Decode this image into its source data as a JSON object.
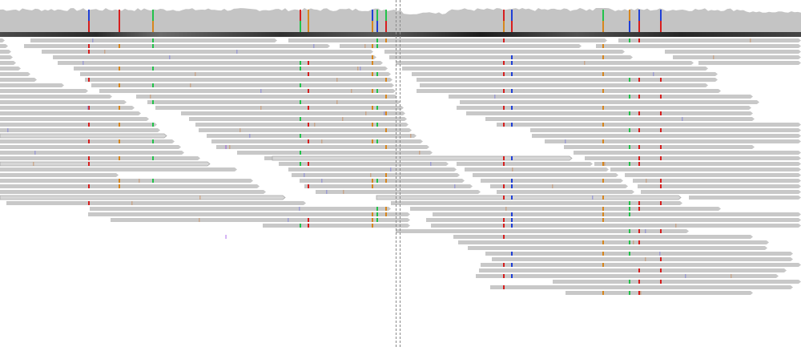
{
  "colors": {
    "read_fill": "#c8c8c8",
    "read_fill_soft": "#d6d6d6",
    "read_outline": "#a9a9a9",
    "coverage": "#c4c4c4",
    "ref_strip_dark": "#222222",
    "base_A": "#22c24a",
    "base_C": "#1f3fd6",
    "base_G": "#d6861e",
    "base_T": "#d61e1e",
    "insertion": "#8a2be2",
    "guide": "#8a8a8a"
  },
  "coverage_track": {
    "variant_sites": [
      {
        "pos": 111,
        "bases": [
          "C",
          "T"
        ]
      },
      {
        "pos": 149,
        "bases": [
          "T"
        ]
      },
      {
        "pos": 191,
        "bases": [
          "A",
          "G"
        ]
      },
      {
        "pos": 375,
        "bases": [
          "T",
          "A"
        ]
      },
      {
        "pos": 385,
        "bases": [
          "G"
        ]
      },
      {
        "pos": 465,
        "bases": [
          "C",
          "G"
        ]
      },
      {
        "pos": 471,
        "bases": [
          "A",
          "C"
        ]
      },
      {
        "pos": 482,
        "bases": [
          "A",
          "T"
        ]
      },
      {
        "pos": 629,
        "bases": [
          "T",
          "G"
        ]
      },
      {
        "pos": 639,
        "bases": [
          "C",
          "T"
        ]
      },
      {
        "pos": 753,
        "bases": [
          "A",
          "G"
        ]
      },
      {
        "pos": 786,
        "bases": [
          "G",
          "C"
        ]
      },
      {
        "pos": 798,
        "bases": [
          "C",
          "T"
        ]
      },
      {
        "pos": 825,
        "bases": [
          "C",
          "T"
        ]
      }
    ]
  },
  "alignment_track": {
    "read_count": 56,
    "guide_positions": [
      494,
      499
    ]
  }
}
